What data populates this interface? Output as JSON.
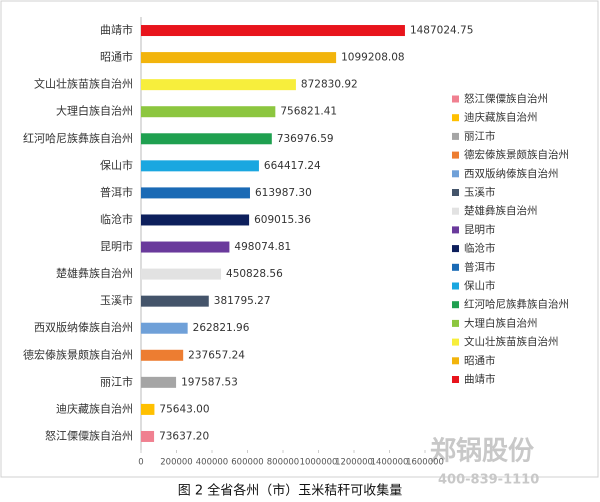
{
  "chart_data": {
    "type": "bar",
    "orientation": "horizontal",
    "caption": "图 2 全省各州（市）玉米秸秆可收集量",
    "watermark": "郑锅股份",
    "watermark_phone": "400-839-1110",
    "categories": [
      "曲靖市",
      "昭通市",
      "文山壮族苗族自治州",
      "大理白族自治州",
      "红河哈尼族彝族自治州",
      "保山市",
      "普洱市",
      "临沧市",
      "昆明市",
      "楚雄彝族自治州",
      "玉溪市",
      "西双版纳傣族自治州",
      "德宏傣族景颇族自治州",
      "丽江市",
      "迪庆藏族自治州",
      "怒江傈僳族自治州"
    ],
    "values": [
      1487024.75,
      1099208.08,
      872830.92,
      756821.41,
      736976.59,
      664417.24,
      613987.3,
      609015.36,
      498074.81,
      450828.56,
      381795.27,
      262821.96,
      237657.24,
      197587.53,
      75643.0,
      73637.2
    ],
    "value_labels": [
      "1487024.75",
      "1099208.08",
      "872830.92",
      "756821.41",
      "736976.59",
      "664417.24",
      "613987.30",
      "609015.36",
      "498074.81",
      "450828.56",
      "381795.27",
      "262821.96",
      "237657.24",
      "197587.53",
      "75643.00",
      "73637.20"
    ],
    "colors": [
      "#e8141c",
      "#f2b40c",
      "#f7ee3c",
      "#8cc63f",
      "#1fa050",
      "#1aa7e0",
      "#1a6ab5",
      "#0d1f5c",
      "#6a3a9c",
      "#e2e2e2",
      "#44546a",
      "#6fa0d8",
      "#ed7d31",
      "#a5a5a5",
      "#ffc000",
      "#f08090"
    ],
    "xlim": [
      0,
      1600000
    ],
    "xticks": [
      0,
      200000,
      400000,
      600000,
      800000,
      1000000,
      1200000,
      1400000,
      1600000
    ],
    "legend": "right"
  }
}
